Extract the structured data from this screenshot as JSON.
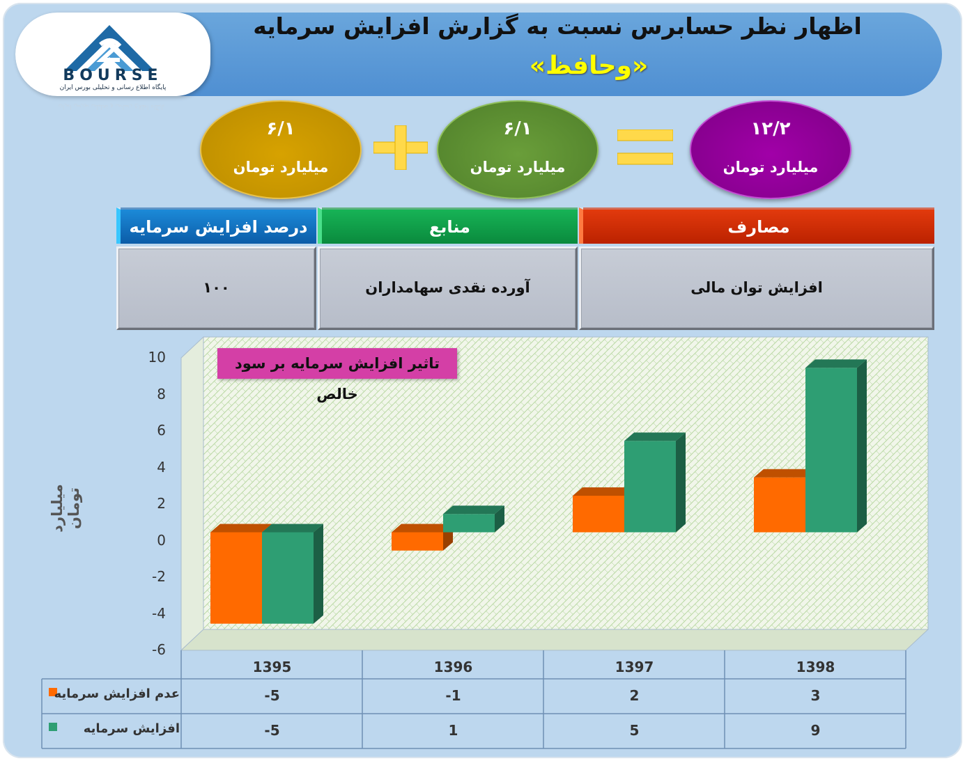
{
  "header": {
    "title": "اظهار نظر حسابرس نسبت به گزارش افزایش سرمایه",
    "company": "«وحافظ»",
    "logo_text": "BOURSE",
    "logo_subtitle": "پایگاه اطلاع رسانی و تحلیلی بورس ایران"
  },
  "equation": {
    "left": {
      "amount": "۶/۱",
      "unit": "میلیارد تومان",
      "color": "#c99700"
    },
    "plus_symbol": "+",
    "middle": {
      "amount": "۶/۱",
      "unit": "میلیارد تومان",
      "color": "#5f8f33"
    },
    "equals_symbol": "=",
    "right": {
      "amount": "۱۲/۲",
      "unit": "میلیارد تومان",
      "color": "#930099"
    }
  },
  "info_table": {
    "columns": [
      {
        "header": "درصد افزایش سرمایه",
        "value": "۱۰۰",
        "color": "#1070c0"
      },
      {
        "header": "منابع",
        "value": "آورده نقدی سهامداران",
        "color": "#0f9b45"
      },
      {
        "header": "مصارف",
        "value": "افزایش توان مالی",
        "color": "#d02a05"
      }
    ]
  },
  "chart_data": {
    "type": "bar",
    "title": "تاثیر افزایش سرمایه بر سود خالص",
    "ylabel": "میلیارد تومان",
    "xlabel": "",
    "categories": [
      "1395",
      "1396",
      "1397",
      "1398"
    ],
    "series": [
      {
        "name": "عدم افزایش سرمایه",
        "values": [
          -5,
          -1,
          2,
          3
        ],
        "color": "#ff6a00"
      },
      {
        "name": "افزایش سرمایه",
        "values": [
          -5,
          1,
          5,
          9
        ],
        "color": "#2e9e73"
      }
    ],
    "ylim": [
      -6,
      10
    ],
    "yticks": [
      "10",
      "8",
      "6",
      "4",
      "2",
      "0",
      "-2",
      "-4",
      "-6"
    ],
    "grid": false,
    "legend": "data-table",
    "table_values": [
      [
        "-5",
        "-1",
        "2",
        "3"
      ],
      [
        "-5",
        "1",
        "5",
        "9"
      ]
    ]
  }
}
